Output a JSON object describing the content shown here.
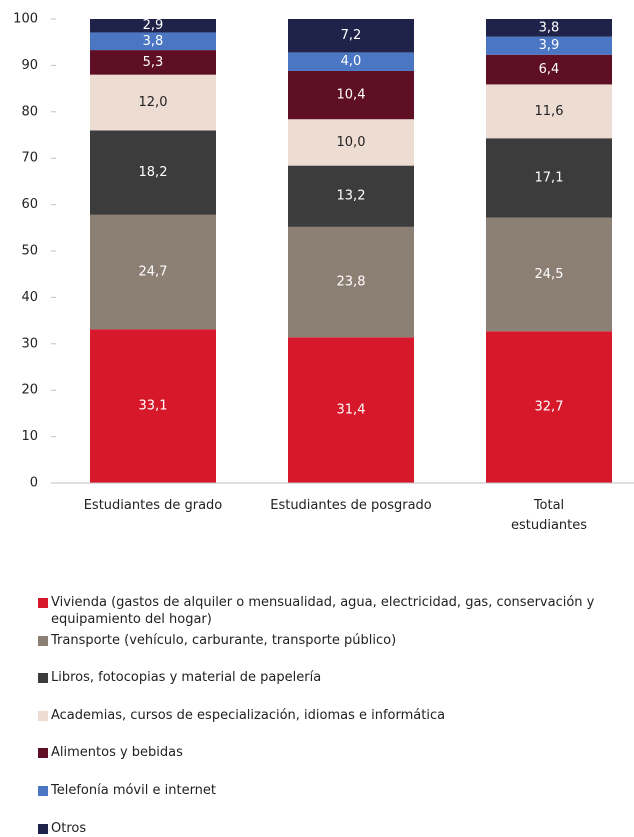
{
  "chart_data": {
    "type": "stacked_bar",
    "categories": [
      "Estudiantes de grado",
      "Estudiantes de posgrado",
      "Total estudiantes"
    ],
    "series": [
      {
        "name": "Vivienda (gastos de alquiler o mensualidad, agua, electricidad, gas, conservación y equipamiento del hogar)",
        "color": "#d7182a",
        "values": [
          33.1,
          31.4,
          32.7
        ],
        "value_labels": [
          "33,1",
          "31,4",
          "32,7"
        ]
      },
      {
        "name": "Transporte (vehículo, carburante, transporte público)",
        "color": "#8c7f74",
        "values": [
          24.7,
          23.8,
          24.5
        ],
        "value_labels": [
          "24,7",
          "23,8",
          "24,5"
        ]
      },
      {
        "name": "Libros, fotocopias y material de papelería",
        "color": "#3c3c3c",
        "values": [
          18.2,
          13.2,
          17.1
        ],
        "value_labels": [
          "18,2",
          "13,2",
          "17,1"
        ]
      },
      {
        "name": "Academias, cursos de especialización, idiomas e informática",
        "color": "#eddcd2",
        "values": [
          12.0,
          10.0,
          11.6
        ],
        "value_labels": [
          "12,0",
          "10,0",
          "11,6"
        ]
      },
      {
        "name": "Alimentos y bebidas",
        "color": "#5e0f23",
        "values": [
          5.3,
          10.4,
          6.4
        ],
        "value_labels": [
          "5,3",
          "10,4",
          "6,4"
        ]
      },
      {
        "name": "Telefonía móvil e internet",
        "color": "#4a76c4",
        "values": [
          3.8,
          4.0,
          3.9
        ],
        "value_labels": [
          "3,8",
          "4,0",
          "3,9"
        ]
      },
      {
        "name": "Otros",
        "color": "#1f2249",
        "values": [
          2.9,
          7.2,
          3.8
        ],
        "value_labels": [
          "2,9",
          "7,2",
          "3,8"
        ]
      }
    ],
    "ylim": [
      0,
      100
    ],
    "yticks": [
      0,
      10,
      20,
      30,
      40,
      50,
      60,
      70,
      80,
      90,
      100
    ],
    "grid": false,
    "legend": "bottom"
  }
}
